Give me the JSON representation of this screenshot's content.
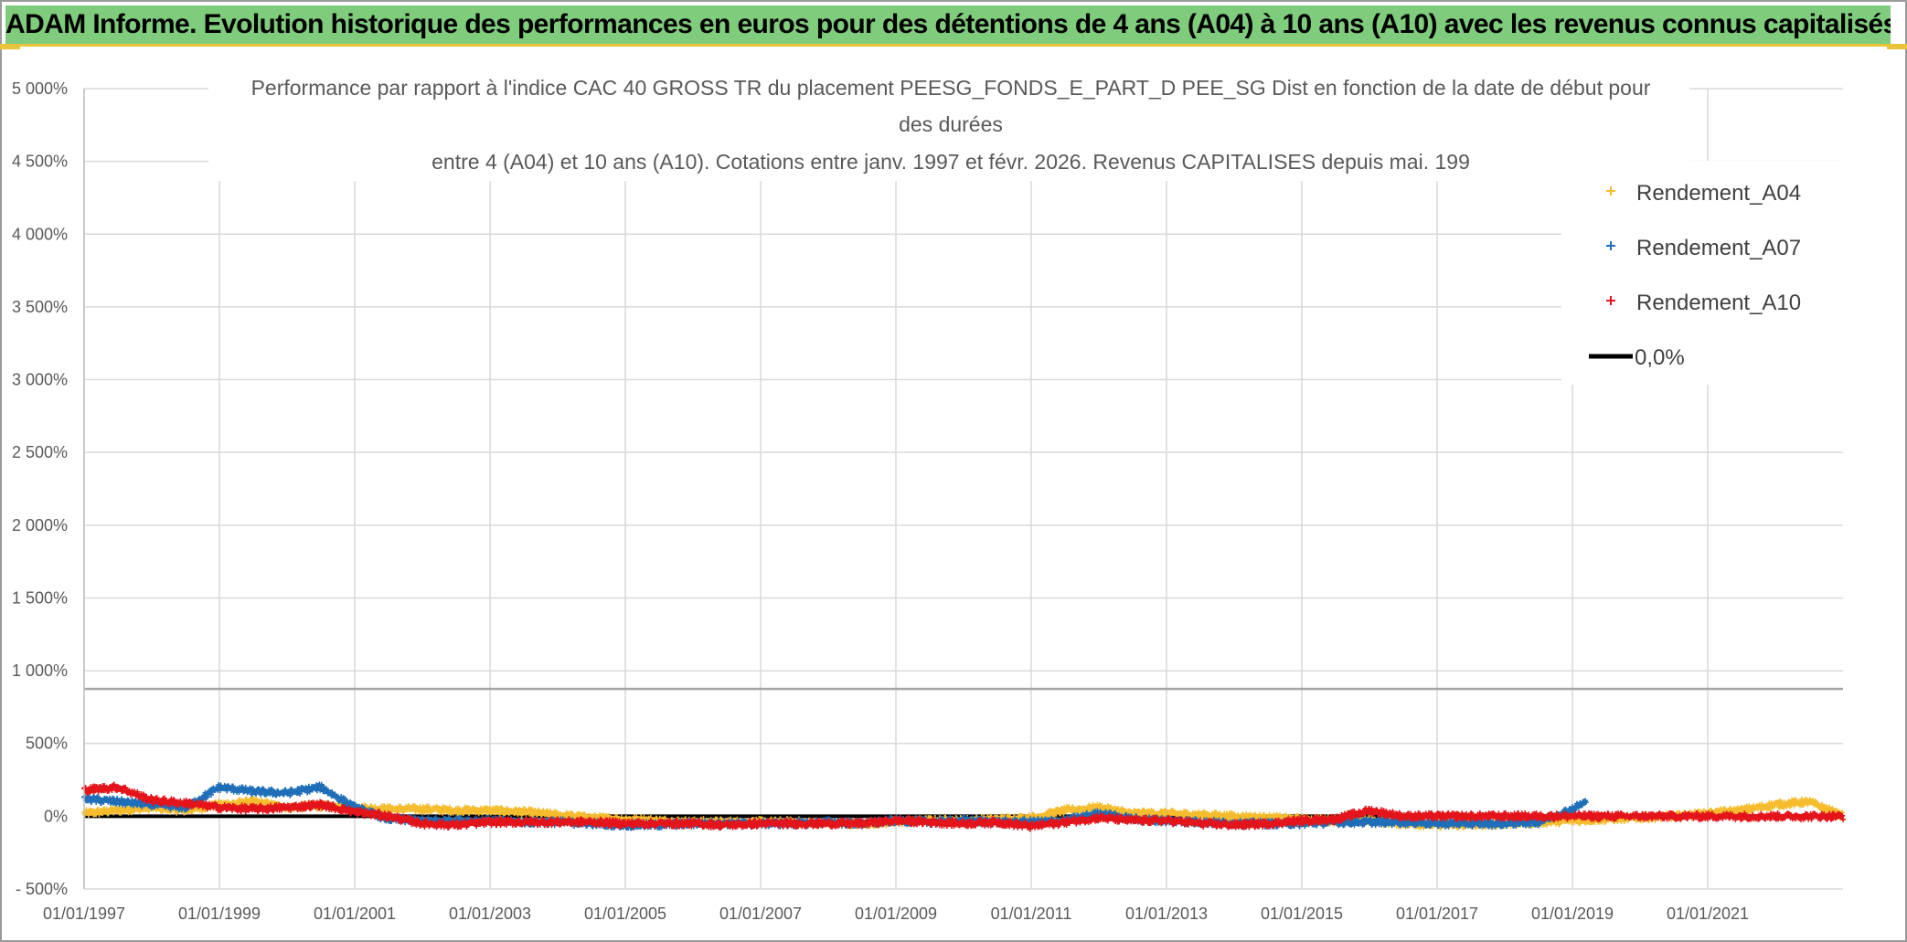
{
  "header": {
    "title": "ADAM Informe. Evolution historique des performances en euros pour des détentions de 4 ans (A04) à 10 ans (A10) avec les revenus connus capitalisés"
  },
  "chart_data": {
    "type": "scatter",
    "title_lines": [
      "Performance par rapport à l'indice CAC 40 GROSS TR  du placement PEESG_FONDS_E_PART_D PEE_SG Dist en fonction de la date de début pour",
      "des durées",
      "entre 4 (A04) et 10 ans (A10). Cotations entre janv. 1997 et févr. 2026. Revenus CAPITALISES depuis mai. 199"
    ],
    "xlabel": "",
    "ylabel": "",
    "xlim": [
      1997.0,
      2023.0
    ],
    "ylim": [
      -500,
      5000
    ],
    "x_ticks": [
      1997,
      1999,
      2001,
      2003,
      2005,
      2007,
      2009,
      2011,
      2013,
      2015,
      2017,
      2019,
      2021
    ],
    "x_tick_labels": [
      "01/01/1997",
      "01/01/1999",
      "01/01/2001",
      "01/01/2003",
      "01/01/2005",
      "01/01/2007",
      "01/01/2009",
      "01/01/2011",
      "01/01/2013",
      "01/01/2015",
      "01/01/2017",
      "01/01/2019",
      "01/01/2021"
    ],
    "y_ticks": [
      -500,
      0,
      500,
      1000,
      1500,
      2000,
      2500,
      3000,
      3500,
      4000,
      4500,
      5000
    ],
    "y_tick_labels": [
      "- 500%",
      "0%",
      "500%",
      "1 000%",
      "1 500%",
      "2 000%",
      "2 500%",
      "3 000%",
      "3 500%",
      "4 000%",
      "4 500%",
      "5 000%"
    ],
    "reference_line_value": 875,
    "grid": true,
    "legend_position": "top-right",
    "series": [
      {
        "name": "Rendement_A04",
        "color": "#f5bd2e",
        "marker": "plus",
        "x": [
          1997.0,
          1997.5,
          1998.0,
          1998.5,
          1999.0,
          1999.5,
          2000.0,
          2000.5,
          2001.0,
          2001.5,
          2002.0,
          2002.5,
          2003.0,
          2003.5,
          2004.0,
          2004.5,
          2005.0,
          2005.5,
          2006.0,
          2006.5,
          2007.0,
          2007.5,
          2008.0,
          2008.5,
          2009.0,
          2009.5,
          2010.0,
          2010.5,
          2011.0,
          2011.5,
          2012.0,
          2012.5,
          2013.0,
          2013.5,
          2014.0,
          2014.5,
          2015.0,
          2015.5,
          2016.0,
          2016.5,
          2017.0,
          2017.5,
          2018.0,
          2018.5,
          2019.0,
          2019.5,
          2020.0,
          2020.5,
          2021.0,
          2021.5,
          2022.0,
          2022.5,
          2023.0
        ],
        "y": [
          20,
          40,
          60,
          40,
          80,
          100,
          60,
          70,
          60,
          50,
          50,
          40,
          40,
          30,
          10,
          -10,
          -20,
          -30,
          -40,
          -40,
          -40,
          -40,
          -50,
          -50,
          -40,
          -30,
          -30,
          -20,
          -10,
          40,
          60,
          20,
          20,
          10,
          0,
          -10,
          -20,
          -30,
          -30,
          -50,
          -60,
          -60,
          -50,
          -40,
          -30,
          -20,
          -10,
          0,
          20,
          40,
          80,
          100,
          0
        ]
      },
      {
        "name": "Rendement_A07",
        "color": "#1f6eb8",
        "marker": "plus",
        "x": [
          1997.0,
          1997.5,
          1998.0,
          1998.5,
          1999.0,
          1999.5,
          2000.0,
          2000.5,
          2001.0,
          2001.5,
          2002.0,
          2002.5,
          2003.0,
          2003.5,
          2004.0,
          2004.5,
          2005.0,
          2005.5,
          2006.0,
          2006.5,
          2007.0,
          2007.5,
          2008.0,
          2008.5,
          2009.0,
          2009.5,
          2010.0,
          2010.5,
          2011.0,
          2011.5,
          2012.0,
          2012.5,
          2013.0,
          2013.5,
          2014.0,
          2014.5,
          2015.0,
          2015.5,
          2016.0,
          2016.5,
          2017.0,
          2017.5,
          2018.0,
          2018.5,
          2019.0,
          2019.2
        ],
        "y": [
          120,
          100,
          80,
          60,
          200,
          170,
          160,
          200,
          60,
          -20,
          -30,
          -30,
          -30,
          -40,
          -40,
          -50,
          -60,
          -60,
          -50,
          -50,
          -50,
          -50,
          -40,
          -50,
          -30,
          -40,
          -30,
          -40,
          -40,
          -30,
          20,
          -20,
          -30,
          -40,
          -50,
          -50,
          -50,
          -40,
          -40,
          -40,
          -50,
          -50,
          -50,
          -40,
          50,
          100
        ]
      },
      {
        "name": "Rendement_A10",
        "color": "#e3141b",
        "marker": "plus",
        "x": [
          1997.0,
          1997.5,
          1998.0,
          1998.5,
          1999.0,
          1999.5,
          2000.0,
          2000.5,
          2001.0,
          2001.5,
          2002.0,
          2002.5,
          2003.0,
          2003.5,
          2004.0,
          2004.5,
          2005.0,
          2005.5,
          2006.0,
          2006.5,
          2007.0,
          2007.5,
          2008.0,
          2008.5,
          2009.0,
          2009.5,
          2010.0,
          2010.5,
          2011.0,
          2011.5,
          2012.0,
          2012.5,
          2013.0,
          2013.5,
          2014.0,
          2014.5,
          2015.0,
          2015.5,
          2016.0,
          2016.5,
          2017.0,
          2017.5,
          2018.0,
          2018.5,
          2019.0,
          2019.5,
          2020.0,
          2020.5,
          2021.0,
          2021.5,
          2022.0,
          2022.5,
          2023.0
        ],
        "y": [
          180,
          200,
          110,
          90,
          60,
          50,
          60,
          80,
          30,
          0,
          -50,
          -60,
          -40,
          -40,
          -40,
          -40,
          -50,
          -50,
          -50,
          -60,
          -50,
          -50,
          -50,
          -50,
          -30,
          -40,
          -50,
          -40,
          -70,
          -40,
          -10,
          -30,
          -30,
          -50,
          -60,
          -50,
          -30,
          -20,
          40,
          0,
          0,
          0,
          0,
          0,
          0,
          0,
          0,
          0,
          0,
          0,
          0,
          0,
          0
        ]
      },
      {
        "name": "0,0%",
        "color": "#000000",
        "marker": "line",
        "x": [
          1997.0,
          2023.0
        ],
        "y": [
          0,
          0
        ]
      }
    ]
  }
}
